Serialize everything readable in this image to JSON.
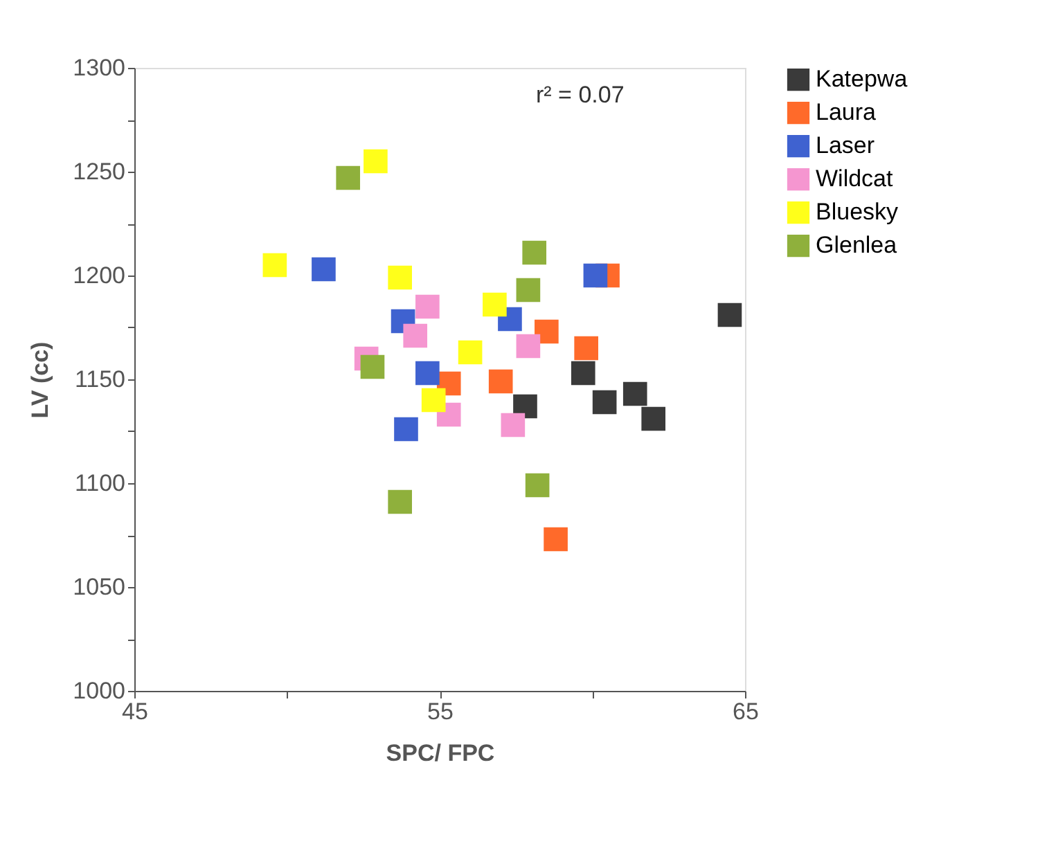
{
  "chart_data": {
    "type": "scatter",
    "xlabel": "SPC/ FPC",
    "ylabel": "LV (cc)",
    "annotations": [
      "r² = 0.07"
    ],
    "xlim": [
      45,
      65
    ],
    "xticks": [
      45,
      {
        "value": 50,
        "label": null
      },
      55,
      {
        "value": 60,
        "label": null
      },
      65
    ],
    "ylim": [
      1000,
      1300
    ],
    "yticks": [
      1000,
      {
        "value": 1025,
        "label": null
      },
      1050,
      {
        "value": 1075,
        "label": null
      },
      1100,
      {
        "value": 1125,
        "label": null
      },
      1150,
      {
        "value": 1175,
        "label": null
      },
      1200,
      {
        "value": 1225,
        "label": null
      },
      1250,
      {
        "value": 1275,
        "label": null
      },
      1300
    ],
    "grid": false,
    "legend": "right",
    "marker": "square",
    "series": [
      {
        "name": "Katepwa",
        "color": "#3a3a3a",
        "x": [
          59.7,
          60.4,
          61.4,
          62.0,
          57.8,
          64.5
        ],
        "values": [
          1153,
          1139,
          1143,
          1131,
          1137,
          1181
        ]
      },
      {
        "name": "Laura",
        "color": "#ff6a2a",
        "x": [
          58.5,
          59.8,
          57.0,
          58.8,
          60.5,
          55.3
        ],
        "values": [
          1173,
          1165,
          1149,
          1073,
          1200,
          1148
        ]
      },
      {
        "name": "Laser",
        "color": "#3f62d0",
        "x": [
          51.2,
          53.8,
          54.6,
          53.9,
          60.1,
          57.3
        ],
        "values": [
          1203,
          1178,
          1153,
          1126,
          1200,
          1179
        ]
      },
      {
        "name": "Wildcat",
        "color": "#f596d0",
        "x": [
          54.6,
          54.2,
          52.6,
          55.3,
          57.9,
          57.4
        ],
        "values": [
          1185,
          1171,
          1160,
          1133,
          1166,
          1128
        ]
      },
      {
        "name": "Bluesky",
        "color": "#ffff1a",
        "x": [
          52.9,
          49.6,
          53.7,
          56.8,
          56.0,
          54.8
        ],
        "values": [
          1255,
          1205,
          1199,
          1186,
          1163,
          1140
        ]
      },
      {
        "name": "Glenlea",
        "color": "#8fb03c",
        "x": [
          52.0,
          52.8,
          53.7,
          58.1,
          57.9,
          58.2
        ],
        "values": [
          1247,
          1156,
          1091,
          1211,
          1193,
          1099
        ]
      }
    ]
  }
}
